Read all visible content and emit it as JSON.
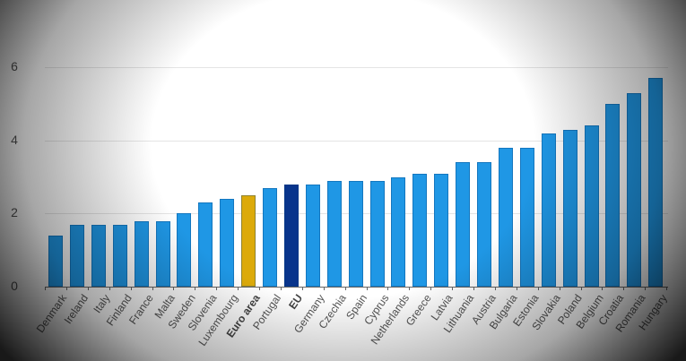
{
  "chart_data": {
    "type": "bar",
    "title": "",
    "xlabel": "",
    "ylabel": "",
    "ylim": [
      0,
      6
    ],
    "yticks": [
      0,
      2,
      4,
      6
    ],
    "grid": true,
    "legend": null,
    "categories": [
      "Denmark",
      "Ireland",
      "Italy",
      "Finland",
      "France",
      "Malta",
      "Sweden",
      "Slovenia",
      "Luxembourg",
      "Euro area",
      "Portugal",
      "EU",
      "Germany",
      "Czechia",
      "Spain",
      "Cyprus",
      "Netherlands",
      "Greece",
      "Latvia",
      "Lithuania",
      "Austria",
      "Bulgaria",
      "Estonia",
      "Slovakia",
      "Poland",
      "Belgium",
      "Croatia",
      "Romania",
      "Hungary"
    ],
    "values": [
      1.4,
      1.7,
      1.7,
      1.7,
      1.8,
      1.8,
      2.0,
      2.3,
      2.4,
      2.5,
      2.7,
      2.8,
      2.8,
      2.9,
      2.9,
      2.9,
      3.0,
      3.1,
      3.1,
      3.4,
      3.4,
      3.8,
      3.8,
      4.2,
      4.3,
      4.4,
      5.0,
      5.3,
      5.7
    ],
    "highlights": {
      "Euro area": "#dcaa0a",
      "EU": "#08348c"
    },
    "colors": {
      "default": "#1f97e5",
      "euro_area": "#dcaa0a",
      "eu": "#08348c"
    },
    "bold_labels": [
      "Euro area",
      "EU"
    ]
  }
}
